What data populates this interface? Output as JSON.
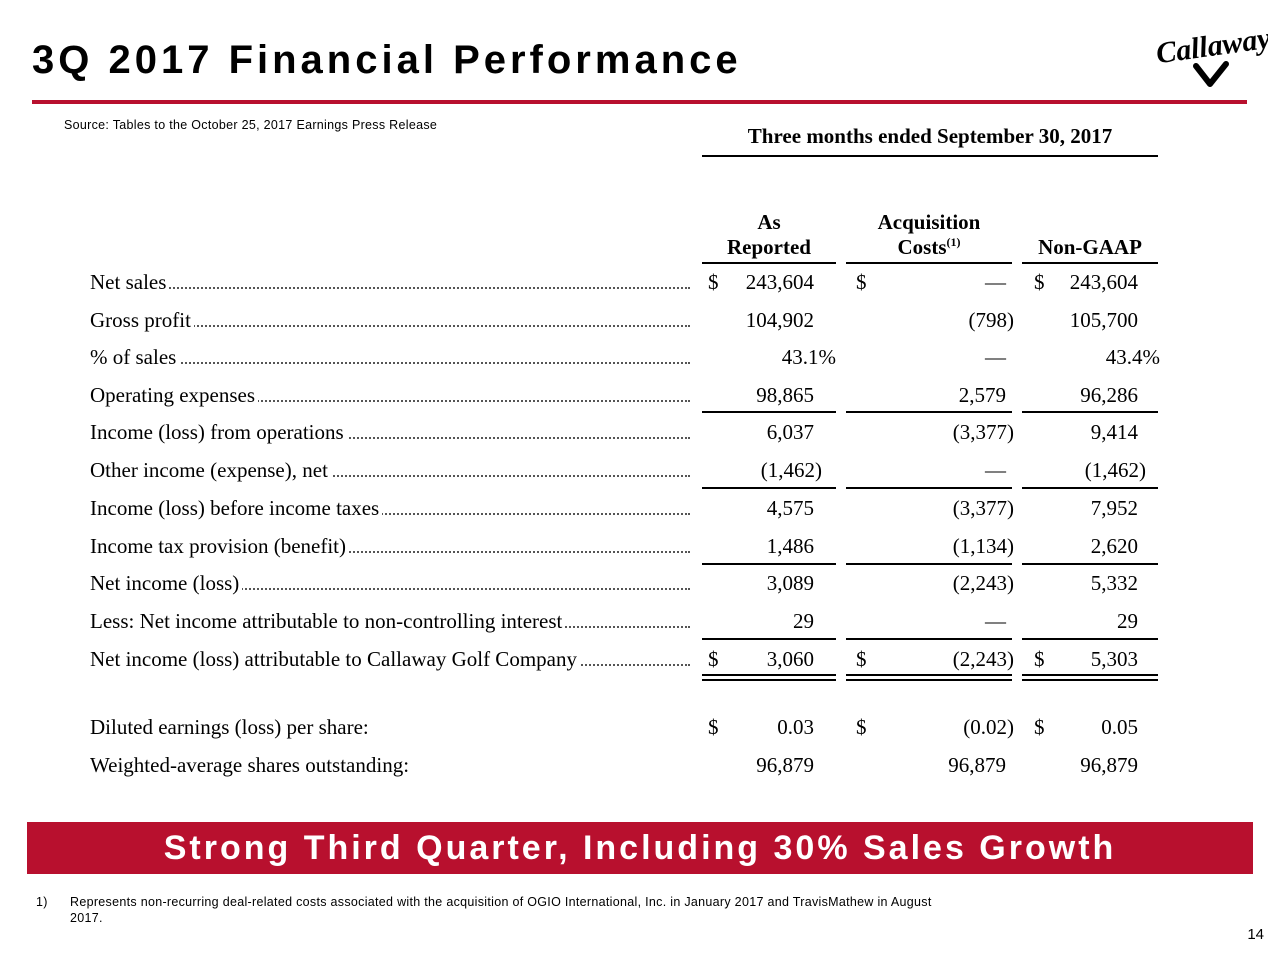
{
  "header": {
    "title": "3Q 2017 Financial Performance",
    "source": "Source: Tables to the October 25, 2017 Earnings Press Release",
    "logo_text": "Callaway"
  },
  "table": {
    "period_heading": "Three months ended September 30, 2017",
    "columns": {
      "reported_line1": "As",
      "reported_line2": "Reported",
      "acq_line1": "Acquisition",
      "acq_line2": "Costs",
      "acq_footnote_ref": "(1)",
      "nongaap": "Non-GAAP"
    },
    "currency_symbol": "$",
    "rows": [
      {
        "label": "Net sales",
        "reported": "243,604",
        "acq": "—",
        "nongaap": "243,604"
      },
      {
        "label": "Gross profit",
        "reported": "104,902",
        "acq": "(798)",
        "nongaap": "105,700"
      },
      {
        "label": "% of sales",
        "reported": "43.1%",
        "acq": "—",
        "nongaap": "43.4%"
      },
      {
        "label": "Operating expenses",
        "reported": "98,865",
        "acq": "2,579",
        "nongaap": "96,286"
      },
      {
        "label": "Income (loss) from operations",
        "reported": "6,037",
        "acq": "(3,377)",
        "nongaap": "9,414"
      },
      {
        "label": "Other income (expense), net",
        "reported": "(1,462)",
        "acq": "—",
        "nongaap": "(1,462)"
      },
      {
        "label": "Income (loss) before income taxes",
        "reported": "4,575",
        "acq": "(3,377)",
        "nongaap": "7,952"
      },
      {
        "label": "Income tax provision (benefit)",
        "reported": "1,486",
        "acq": "(1,134)",
        "nongaap": "2,620"
      },
      {
        "label": "Net income (loss)",
        "reported": "3,089",
        "acq": "(2,243)",
        "nongaap": "5,332"
      },
      {
        "label": "Less: Net income attributable to non-controlling interest",
        "reported": "29",
        "acq": "—",
        "nongaap": "29"
      },
      {
        "label": "Net income (loss) attributable to Callaway Golf Company",
        "reported": "3,060",
        "acq": "(2,243)",
        "nongaap": "5,303"
      }
    ],
    "eps_row": {
      "label": "Diluted earnings (loss) per share:",
      "reported": "0.03",
      "acq": "(0.02)",
      "nongaap": "0.05"
    },
    "shares_row": {
      "label": "Weighted-average shares outstanding:",
      "reported": "96,879",
      "acq": "96,879",
      "nongaap": "96,879"
    }
  },
  "banner": {
    "text": "Strong Third Quarter, Including 30% Sales Growth"
  },
  "footnote": {
    "marker": "1)",
    "line1": "Represents non-recurring deal-related costs associated with the acquisition of OGIO International, Inc. in January 2017 and TravisMathew in August",
    "line2": "2017."
  },
  "page_number": "14",
  "colors": {
    "accent": "#b8102e",
    "text": "#000000",
    "background": "#ffffff"
  }
}
